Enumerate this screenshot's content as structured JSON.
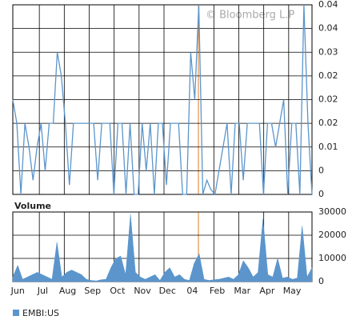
{
  "watermark": "© Bloomberg L.P",
  "legend": "EMBI:US",
  "chart_data": [
    {
      "type": "line",
      "color": "#5b95cc",
      "values": [
        0.02,
        0.015,
        0,
        0.015,
        0.01,
        0.003,
        0.01,
        0.015,
        0.005,
        0.015,
        0.015,
        0.03,
        0.025,
        0.015,
        0.002,
        0.015,
        0.015,
        0.015,
        0.015,
        0.015,
        0.015,
        0.003,
        0.015,
        0.015,
        0.015,
        0,
        0.015,
        0.015,
        0,
        0.015,
        0,
        0,
        0.015,
        0.005,
        0.015,
        0,
        0.015,
        0.015,
        0.002,
        0.015,
        0.015,
        0.015,
        0,
        0,
        0.03,
        0.02,
        0.04,
        0,
        0.003,
        0.001,
        0,
        0.005,
        0.01,
        0.015,
        0,
        0.015,
        0.015,
        0.003,
        0.015,
        0.015,
        0.015,
        0.015,
        0,
        0.015,
        0.015,
        0.01,
        0.015,
        0.02,
        0,
        0.015,
        0.015,
        0,
        0.04,
        0.015,
        0
      ],
      "ylim": [
        0,
        0.04
      ],
      "yticks": [
        {
          "value": 0.04,
          "label": "0.04"
        },
        {
          "value": 0.035,
          "label": "0.04"
        },
        {
          "value": 0.03,
          "label": "0.03"
        },
        {
          "value": 0.025,
          "label": "0.02"
        },
        {
          "value": 0.02,
          "label": "0.02"
        },
        {
          "value": 0.015,
          "label": "0.02"
        },
        {
          "value": 0.01,
          "label": "0.01"
        },
        {
          "value": 0.005,
          "label": "0"
        },
        {
          "value": 0,
          "label": "0"
        }
      ],
      "grid": true
    },
    {
      "type": "area",
      "title": "Volume",
      "color": "#5b95cc",
      "values": [
        2000,
        7000,
        1000,
        2000,
        3000,
        4000,
        3000,
        2000,
        1000,
        17000,
        2000,
        4000,
        5000,
        4000,
        3000,
        1000,
        500,
        300,
        800,
        1000,
        6000,
        10000,
        11000,
        3000,
        29000,
        4000,
        2000,
        1000,
        2000,
        3000,
        500,
        4000,
        6000,
        2000,
        3000,
        1000,
        500,
        8000,
        12000,
        1000,
        500,
        800,
        1000,
        1500,
        2000,
        1000,
        3000,
        9000,
        6000,
        2000,
        4000,
        27000,
        3000,
        2000,
        10000,
        1500,
        2000,
        1000,
        1500,
        24000,
        2000,
        6000
      ],
      "ylim": [
        0,
        30000
      ],
      "yticks": [
        0,
        10000,
        20000,
        30000
      ],
      "x_labels": [
        "Jun",
        "Jul",
        "Aug",
        "Sep",
        "Oct",
        "Nov",
        "Dec",
        "04",
        "Feb",
        "Mar",
        "Apr",
        "May"
      ],
      "grid": true
    }
  ]
}
